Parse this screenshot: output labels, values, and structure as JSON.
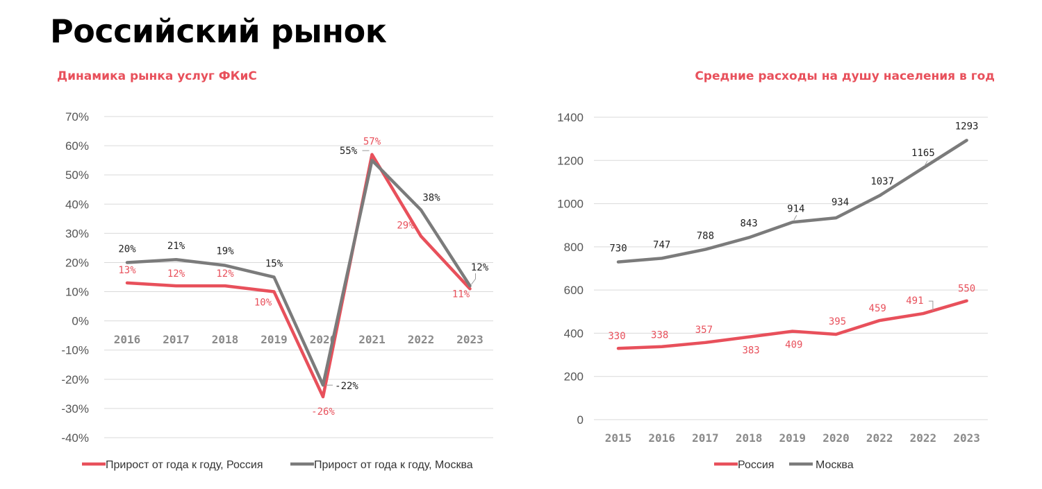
{
  "page": {
    "title": "Российский рынок"
  },
  "colors": {
    "red": "#e8505b",
    "gray": "#7b7b7b",
    "grid": "#d9d9d9",
    "title_red": "#e8505b"
  },
  "chart_data": [
    {
      "type": "line",
      "title": "Динамика рынка услуг ФКиС",
      "categories": [
        "2016",
        "2017",
        "2018",
        "2019",
        "2020",
        "2021",
        "2022",
        "2023"
      ],
      "y_tick_labels": [
        "70%",
        "60%",
        "50%",
        "40%",
        "30%",
        "20%",
        "10%",
        "0%",
        "-10%",
        "-20%",
        "-30%",
        "-40%"
      ],
      "ylim": [
        -40,
        70
      ],
      "grid": true,
      "legend_position": "bottom",
      "series": [
        {
          "name": "Прирост от года к году, Россия",
          "color": "#e8505b",
          "values": [
            13,
            12,
            12,
            10,
            -26,
            57,
            29,
            11
          ],
          "labels": [
            "13%",
            "12%",
            "12%",
            "10%",
            "-26%",
            "57%",
            "29%",
            "11%"
          ]
        },
        {
          "name": "Прирост от года к году, Москва",
          "color": "#7b7b7b",
          "values": [
            20,
            21,
            19,
            15,
            -22,
            55,
            38,
            12
          ],
          "labels": [
            "20%",
            "21%",
            "19%",
            "15%",
            "-22%",
            "55%",
            "38%",
            "12%"
          ]
        }
      ]
    },
    {
      "type": "line",
      "title": "Средние расходы на душу населения в год",
      "categories": [
        "2015",
        "2016",
        "2017",
        "2018",
        "2019",
        "2020",
        "2022",
        "2022",
        "2023"
      ],
      "y_tick_labels": [
        "1400",
        "1200",
        "1000",
        "800",
        "600",
        "400",
        "200",
        "0"
      ],
      "ylim": [
        0,
        1400
      ],
      "grid": true,
      "legend_position": "bottom",
      "series": [
        {
          "name": "Россия",
          "color": "#e8505b",
          "values": [
            330,
            338,
            357,
            383,
            409,
            395,
            459,
            491,
            550
          ],
          "labels": [
            "330",
            "338",
            "357",
            "383",
            "409",
            "395",
            "459",
            "491",
            "550"
          ]
        },
        {
          "name": "Москва",
          "color": "#7b7b7b",
          "values": [
            730,
            747,
            788,
            843,
            914,
            934,
            1037,
            1165,
            1293
          ],
          "labels": [
            "730",
            "747",
            "788",
            "843",
            "914",
            "934",
            "1037",
            "1165",
            "1293"
          ]
        }
      ]
    }
  ]
}
